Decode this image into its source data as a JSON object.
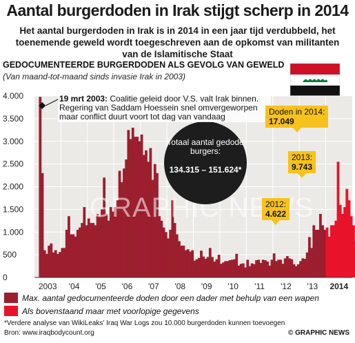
{
  "title": "Aantal burgerdoden in Irak stijgt scherp in 2014",
  "subtitle_lines": [
    "Het aantal burgerdoden in Irak is in 2014 in een jaar tijd verdubbeld, het",
    "toenemende geweld wordt toegeschreven aan de opkomst van militanten",
    "van de Islamitische Staat"
  ],
  "section_title": "GEDOCUMENTEERDE BURGERDODEN ALS GEVOLG VAN GEWELD",
  "section_subtitle": "(Van maand-tot-maand sinds invasie Irak in 2003)",
  "flag": {
    "name": "iraq-flag",
    "colors": [
      "#ce1126",
      "#ffffff",
      "#111111"
    ],
    "emblem_color": "#007a3d"
  },
  "watermark": "GRAPHIC NEWS",
  "annotations": {
    "invasion_date": "19 mrt 2003:",
    "invasion_text": "Coalitie geleid door V.S. valt Irak binnen. Regering van Saddam Hoessein snel omvergeworpen maar conflict duurt voort tot dag van vandaag",
    "total_label": "Totaal aantal gedode burgers:",
    "total_value": "134.315 – 151.624*",
    "y2012_label": "2012:",
    "y2012_value": "4.622",
    "y2013_label": "2013:",
    "y2013_value": "9.743",
    "y2014_label": "Doden in 2014:",
    "y2014_value": "17.049"
  },
  "legend": [
    {
      "label": "Max. aantal gedocumenteerde doden door een dader met behulp van een wapen",
      "color": "#9c1f2e"
    },
    {
      "label": "Als bovenstaand maar met voorlopige gegevens",
      "color": "#e8132b"
    }
  ],
  "footnote": "*Verdere analyse van WikiLeaks' Iraq War Logs zou 10.000 burgerdoden kunnen toevoegen",
  "source": "Bron: www.iraqbodycount.org",
  "credit": "© GRAPHIC NEWS",
  "chart_data": {
    "type": "bar",
    "x_tick_labels": [
      "2003",
      "'04",
      "'05",
      "'06",
      "'07",
      "'08",
      "'09",
      "'10",
      "'11",
      "'12",
      "'13",
      "2014"
    ],
    "ylim": [
      0,
      4000
    ],
    "y_ticks": [
      0,
      500,
      1000,
      1500,
      2000,
      2500,
      3000,
      3500,
      4000
    ],
    "y_tick_labels": [
      "0",
      "500",
      "1.000",
      "1.500",
      "2.000",
      "2.500",
      "3.000",
      "3.500",
      "4.000"
    ],
    "grid": true,
    "series": [
      {
        "name": "Max. aantal gedocumenteerde doden door een dader met behulp van een wapen",
        "color": "#9c1f2e",
        "start": "2003-01",
        "values": [
          4,
          7,
          3980,
          2300,
          600,
          520,
          700,
          750,
          550,
          600,
          520,
          560,
          650,
          650,
          1050,
          1350,
          950,
          950,
          900,
          1050,
          1100,
          1200,
          1550,
          1150,
          1300,
          1200,
          1200,
          1150,
          1400,
          1350,
          1500,
          2200,
          1400,
          1250,
          1550,
          1450,
          1550,
          1700,
          2350,
          2100,
          2400,
          2600,
          3250,
          3050,
          3300,
          3100,
          3100,
          3000,
          3150,
          2700,
          2800,
          2550,
          2850,
          2150,
          2500,
          2300,
          1350,
          1250,
          1100,
          1000,
          860,
          1050,
          1700,
          1200,
          950,
          800,
          700,
          700,
          600,
          620,
          570,
          600,
          370,
          400,
          430,
          590,
          460,
          410,
          450,
          650,
          450,
          350,
          400,
          500,
          300,
          330,
          360,
          360,
          380,
          390,
          400,
          520,
          260,
          300,
          310,
          220,
          390,
          250,
          310,
          290,
          380,
          390,
          320,
          390,
          380,
          350,
          260,
          390,
          530,
          360,
          390,
          390,
          300,
          420,
          470,
          420,
          400,
          290,
          250,
          290,
          360,
          420,
          410,
          550,
          890,
          650,
          1150,
          1050,
          1050,
          1400,
          1150,
          1050
        ]
      },
      {
        "name": "Als bovenstaand maar met voorlopige gegevens",
        "color": "#e8132b",
        "start": "2014-01",
        "values": [
          1100,
          900,
          1150,
          1150,
          1250,
          2550,
          1600,
          1400,
          1550,
          1950,
          1700,
          1350,
          1150,
          800
        ]
      }
    ]
  }
}
